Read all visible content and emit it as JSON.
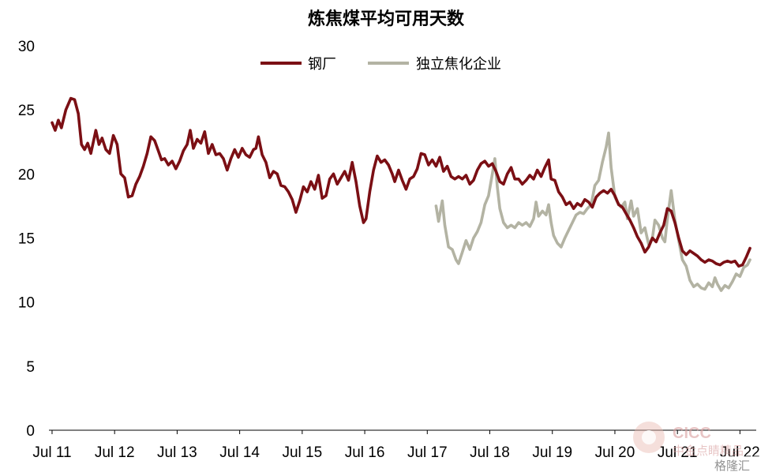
{
  "chart_data": {
    "type": "line",
    "title": "炼焦煤平均可用天数",
    "xlabel": "",
    "ylabel": "",
    "ylim": [
      0,
      30
    ],
    "yticks": [
      0,
      5,
      10,
      15,
      20,
      25,
      30
    ],
    "x_ticks": [
      "Jul 11",
      "Jul 12",
      "Jul 13",
      "Jul 14",
      "Jul 15",
      "Jul 16",
      "Jul 17",
      "Jul 18",
      "Jul 19",
      "Jul 20",
      "Jul 21",
      "Jul 22"
    ],
    "x_range": [
      2011.45,
      2022.76
    ],
    "grid": false,
    "legend": "top",
    "series": [
      {
        "name": "钢厂",
        "color": "#7b0f14",
        "points": [
          [
            2011.5,
            24.0
          ],
          [
            2011.55,
            23.4
          ],
          [
            2011.6,
            24.2
          ],
          [
            2011.65,
            23.6
          ],
          [
            2011.72,
            25.0
          ],
          [
            2011.8,
            25.9
          ],
          [
            2011.86,
            25.8
          ],
          [
            2011.92,
            24.7
          ],
          [
            2011.97,
            22.3
          ],
          [
            2012.02,
            21.9
          ],
          [
            2012.07,
            22.4
          ],
          [
            2012.12,
            21.6
          ],
          [
            2012.2,
            23.4
          ],
          [
            2012.25,
            22.3
          ],
          [
            2012.3,
            22.8
          ],
          [
            2012.36,
            21.9
          ],
          [
            2012.42,
            21.6
          ],
          [
            2012.48,
            23.0
          ],
          [
            2012.54,
            22.3
          ],
          [
            2012.6,
            20.0
          ],
          [
            2012.66,
            19.7
          ],
          [
            2012.72,
            18.2
          ],
          [
            2012.78,
            18.3
          ],
          [
            2012.84,
            19.2
          ],
          [
            2012.9,
            19.8
          ],
          [
            2012.96,
            20.6
          ],
          [
            2013.02,
            21.6
          ],
          [
            2013.08,
            22.9
          ],
          [
            2013.14,
            22.6
          ],
          [
            2013.2,
            21.8
          ],
          [
            2013.25,
            21.1
          ],
          [
            2013.3,
            21.2
          ],
          [
            2013.36,
            20.7
          ],
          [
            2013.42,
            21.0
          ],
          [
            2013.48,
            20.4
          ],
          [
            2013.54,
            21.0
          ],
          [
            2013.6,
            21.8
          ],
          [
            2013.66,
            22.3
          ],
          [
            2013.71,
            23.4
          ],
          [
            2013.76,
            22.0
          ],
          [
            2013.82,
            22.7
          ],
          [
            2013.88,
            22.4
          ],
          [
            2013.94,
            23.3
          ],
          [
            2014.0,
            21.6
          ],
          [
            2014.06,
            22.3
          ],
          [
            2014.12,
            21.5
          ],
          [
            2014.18,
            21.6
          ],
          [
            2014.24,
            21.2
          ],
          [
            2014.3,
            20.3
          ],
          [
            2014.36,
            21.2
          ],
          [
            2014.42,
            21.9
          ],
          [
            2014.48,
            21.3
          ],
          [
            2014.54,
            22.0
          ],
          [
            2014.6,
            21.5
          ],
          [
            2014.66,
            21.3
          ],
          [
            2014.72,
            21.9
          ],
          [
            2014.76,
            22.0
          ],
          [
            2014.8,
            22.9
          ],
          [
            2014.86,
            21.5
          ],
          [
            2014.92,
            20.9
          ],
          [
            2014.98,
            19.7
          ],
          [
            2015.04,
            20.2
          ],
          [
            2015.1,
            20.0
          ],
          [
            2015.16,
            19.1
          ],
          [
            2015.22,
            19.0
          ],
          [
            2015.28,
            18.6
          ],
          [
            2015.34,
            18.0
          ],
          [
            2015.4,
            17.0
          ],
          [
            2015.46,
            17.9
          ],
          [
            2015.52,
            19.0
          ],
          [
            2015.58,
            18.6
          ],
          [
            2015.64,
            19.4
          ],
          [
            2015.7,
            18.8
          ],
          [
            2015.76,
            19.9
          ],
          [
            2015.82,
            18.1
          ],
          [
            2015.88,
            18.3
          ],
          [
            2015.94,
            19.6
          ],
          [
            2016.0,
            20.0
          ],
          [
            2016.06,
            19.2
          ],
          [
            2016.12,
            19.7
          ],
          [
            2016.18,
            20.2
          ],
          [
            2016.24,
            19.5
          ],
          [
            2016.3,
            20.9
          ],
          [
            2016.36,
            19.4
          ],
          [
            2016.42,
            17.5
          ],
          [
            2016.48,
            16.2
          ],
          [
            2016.52,
            16.5
          ],
          [
            2016.58,
            18.6
          ],
          [
            2016.64,
            20.3
          ],
          [
            2016.7,
            21.4
          ],
          [
            2016.76,
            20.9
          ],
          [
            2016.82,
            21.1
          ],
          [
            2016.88,
            20.7
          ],
          [
            2016.94,
            20.0
          ],
          [
            2016.98,
            19.4
          ],
          [
            2017.04,
            20.3
          ],
          [
            2017.1,
            19.5
          ],
          [
            2017.16,
            18.8
          ],
          [
            2017.22,
            19.6
          ],
          [
            2017.28,
            19.8
          ],
          [
            2017.34,
            20.4
          ],
          [
            2017.4,
            21.6
          ],
          [
            2017.46,
            21.5
          ],
          [
            2017.52,
            20.7
          ],
          [
            2017.58,
            21.1
          ],
          [
            2017.64,
            20.6
          ],
          [
            2017.7,
            21.3
          ],
          [
            2017.76,
            20.2
          ],
          [
            2017.82,
            20.6
          ],
          [
            2017.88,
            19.8
          ],
          [
            2017.94,
            19.6
          ],
          [
            2018.0,
            19.8
          ],
          [
            2018.06,
            19.6
          ],
          [
            2018.12,
            19.9
          ],
          [
            2018.18,
            19.2
          ],
          [
            2018.24,
            19.5
          ],
          [
            2018.3,
            20.3
          ],
          [
            2018.36,
            20.8
          ],
          [
            2018.42,
            21.0
          ],
          [
            2018.48,
            20.6
          ],
          [
            2018.54,
            20.8
          ],
          [
            2018.6,
            20.2
          ],
          [
            2018.66,
            19.4
          ],
          [
            2018.72,
            19.2
          ],
          [
            2018.78,
            20.0
          ],
          [
            2018.84,
            20.5
          ],
          [
            2018.9,
            19.6
          ],
          [
            2018.96,
            19.6
          ],
          [
            2019.02,
            19.2
          ],
          [
            2019.08,
            19.5
          ],
          [
            2019.14,
            19.9
          ],
          [
            2019.2,
            19.6
          ],
          [
            2019.26,
            20.3
          ],
          [
            2019.32,
            19.8
          ],
          [
            2019.38,
            20.5
          ],
          [
            2019.44,
            21.1
          ],
          [
            2019.48,
            19.6
          ],
          [
            2019.54,
            19.5
          ],
          [
            2019.6,
            18.6
          ],
          [
            2019.66,
            18.2
          ],
          [
            2019.72,
            17.6
          ],
          [
            2019.78,
            17.8
          ],
          [
            2019.84,
            17.3
          ],
          [
            2019.9,
            17.7
          ],
          [
            2019.96,
            17.5
          ],
          [
            2020.02,
            18.0
          ],
          [
            2020.08,
            17.8
          ],
          [
            2020.14,
            17.4
          ],
          [
            2020.2,
            18.2
          ],
          [
            2020.26,
            18.5
          ],
          [
            2020.32,
            18.7
          ],
          [
            2020.38,
            18.5
          ],
          [
            2020.44,
            18.8
          ],
          [
            2020.5,
            18.3
          ],
          [
            2020.56,
            17.6
          ],
          [
            2020.62,
            17.4
          ],
          [
            2020.68,
            16.9
          ],
          [
            2020.74,
            16.4
          ],
          [
            2020.8,
            15.8
          ],
          [
            2020.86,
            15.1
          ],
          [
            2020.92,
            14.6
          ],
          [
            2020.98,
            13.9
          ],
          [
            2021.04,
            14.3
          ],
          [
            2021.1,
            15.0
          ],
          [
            2021.16,
            14.7
          ],
          [
            2021.22,
            15.4
          ],
          [
            2021.28,
            16.0
          ],
          [
            2021.34,
            17.3
          ],
          [
            2021.4,
            17.1
          ],
          [
            2021.46,
            16.2
          ],
          [
            2021.52,
            15.0
          ],
          [
            2021.58,
            14.0
          ],
          [
            2021.64,
            13.7
          ],
          [
            2021.7,
            14.0
          ],
          [
            2021.76,
            13.8
          ],
          [
            2021.82,
            13.6
          ],
          [
            2021.88,
            13.3
          ],
          [
            2021.94,
            13.1
          ],
          [
            2022.0,
            13.3
          ],
          [
            2022.06,
            13.2
          ],
          [
            2022.12,
            13.0
          ],
          [
            2022.18,
            12.9
          ],
          [
            2022.24,
            13.1
          ],
          [
            2022.3,
            13.2
          ],
          [
            2022.36,
            13.1
          ],
          [
            2022.42,
            13.2
          ],
          [
            2022.48,
            12.8
          ],
          [
            2022.54,
            12.9
          ],
          [
            2022.6,
            13.5
          ],
          [
            2022.66,
            14.2
          ]
        ]
      },
      {
        "name": "独立焦化企业",
        "color": "#b3b3a3",
        "points": [
          [
            2017.64,
            17.5
          ],
          [
            2017.68,
            16.3
          ],
          [
            2017.74,
            17.9
          ],
          [
            2017.78,
            16.0
          ],
          [
            2017.84,
            14.3
          ],
          [
            2017.9,
            14.1
          ],
          [
            2017.96,
            13.3
          ],
          [
            2018.0,
            13.0
          ],
          [
            2018.06,
            13.9
          ],
          [
            2018.12,
            14.8
          ],
          [
            2018.18,
            14.1
          ],
          [
            2018.24,
            15.0
          ],
          [
            2018.3,
            15.5
          ],
          [
            2018.36,
            16.2
          ],
          [
            2018.42,
            17.6
          ],
          [
            2018.48,
            18.3
          ],
          [
            2018.54,
            20.0
          ],
          [
            2018.58,
            21.2
          ],
          [
            2018.62,
            19.0
          ],
          [
            2018.66,
            17.3
          ],
          [
            2018.72,
            16.2
          ],
          [
            2018.78,
            15.8
          ],
          [
            2018.84,
            16.0
          ],
          [
            2018.9,
            15.8
          ],
          [
            2018.96,
            16.2
          ],
          [
            2019.02,
            16.0
          ],
          [
            2019.08,
            16.2
          ],
          [
            2019.14,
            15.9
          ],
          [
            2019.2,
            16.5
          ],
          [
            2019.24,
            17.8
          ],
          [
            2019.28,
            16.7
          ],
          [
            2019.34,
            17.1
          ],
          [
            2019.4,
            16.8
          ],
          [
            2019.44,
            17.6
          ],
          [
            2019.48,
            16.2
          ],
          [
            2019.52,
            15.2
          ],
          [
            2019.58,
            14.6
          ],
          [
            2019.64,
            14.3
          ],
          [
            2019.7,
            15.0
          ],
          [
            2019.76,
            15.6
          ],
          [
            2019.82,
            16.2
          ],
          [
            2019.88,
            16.8
          ],
          [
            2019.94,
            17.0
          ],
          [
            2020.0,
            16.9
          ],
          [
            2020.06,
            17.3
          ],
          [
            2020.12,
            17.6
          ],
          [
            2020.18,
            19.1
          ],
          [
            2020.24,
            19.5
          ],
          [
            2020.3,
            20.9
          ],
          [
            2020.36,
            22.1
          ],
          [
            2020.4,
            23.2
          ],
          [
            2020.44,
            20.5
          ],
          [
            2020.5,
            18.2
          ],
          [
            2020.54,
            17.8
          ],
          [
            2020.6,
            17.4
          ],
          [
            2020.66,
            17.8
          ],
          [
            2020.7,
            16.5
          ],
          [
            2020.76,
            17.9
          ],
          [
            2020.8,
            16.7
          ],
          [
            2020.86,
            17.3
          ],
          [
            2020.92,
            15.4
          ],
          [
            2020.98,
            15.8
          ],
          [
            2021.04,
            14.5
          ],
          [
            2021.1,
            15.0
          ],
          [
            2021.14,
            16.4
          ],
          [
            2021.2,
            16.0
          ],
          [
            2021.26,
            15.0
          ],
          [
            2021.3,
            14.7
          ],
          [
            2021.34,
            16.5
          ],
          [
            2021.4,
            18.7
          ],
          [
            2021.46,
            16.4
          ],
          [
            2021.52,
            14.8
          ],
          [
            2021.58,
            13.3
          ],
          [
            2021.64,
            12.8
          ],
          [
            2021.7,
            11.7
          ],
          [
            2021.76,
            11.2
          ],
          [
            2021.82,
            11.4
          ],
          [
            2021.88,
            11.1
          ],
          [
            2021.94,
            11.0
          ],
          [
            2022.0,
            11.5
          ],
          [
            2022.06,
            11.2
          ],
          [
            2022.1,
            11.9
          ],
          [
            2022.14,
            11.4
          ],
          [
            2022.2,
            10.9
          ],
          [
            2022.26,
            11.3
          ],
          [
            2022.32,
            11.1
          ],
          [
            2022.38,
            11.6
          ],
          [
            2022.44,
            12.2
          ],
          [
            2022.5,
            12.0
          ],
          [
            2022.56,
            12.7
          ],
          [
            2022.62,
            12.9
          ],
          [
            2022.66,
            13.3
          ]
        ]
      }
    ]
  },
  "watermark": {
    "text": "CICC",
    "sub": "中金点睛精品",
    "source": "格隆汇"
  }
}
